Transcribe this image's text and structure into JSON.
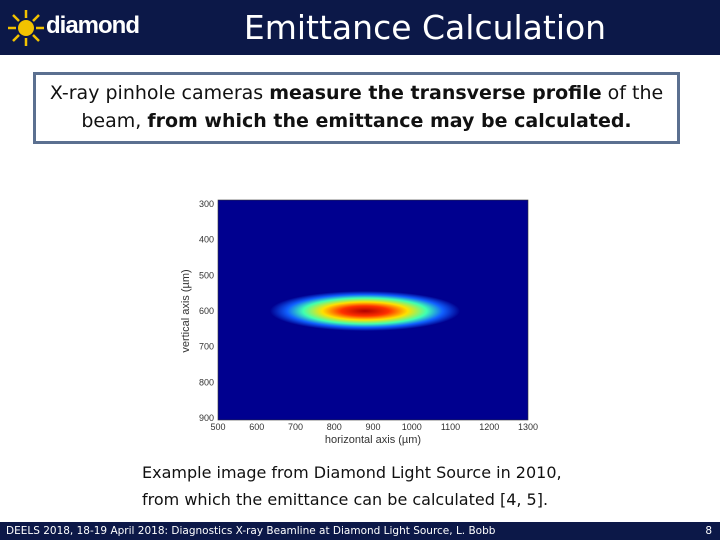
{
  "header": {
    "logo_text": "diamond",
    "title": "Emittance Calculation"
  },
  "intro": {
    "segments": [
      {
        "text": "X-ray pinhole cameras ",
        "bold": false
      },
      {
        "text": "measure the transverse profile",
        "bold": true
      },
      {
        "text": " of the beam, ",
        "bold": false
      },
      {
        "text": "from which the emittance may be calculated.",
        "bold": true
      }
    ]
  },
  "figure": {
    "xlabel": "horizontal axis (µm)",
    "ylabel": "vertical axis (µm)",
    "xticks": [
      500,
      600,
      700,
      800,
      900,
      1000,
      1100,
      1200,
      1300
    ],
    "yticks": [
      300,
      400,
      500,
      600,
      700,
      800,
      900
    ]
  },
  "caption": {
    "lines": [
      "Example image from Diamond Light Source in 2010,",
      "from which the emittance can be calculated [4, 5]."
    ]
  },
  "footer": {
    "text": "DEELS 2018, 18-19 April 2018: Diagnostics X-ray Beamline at Diamond Light Source, L. Bobb",
    "page": "8"
  }
}
